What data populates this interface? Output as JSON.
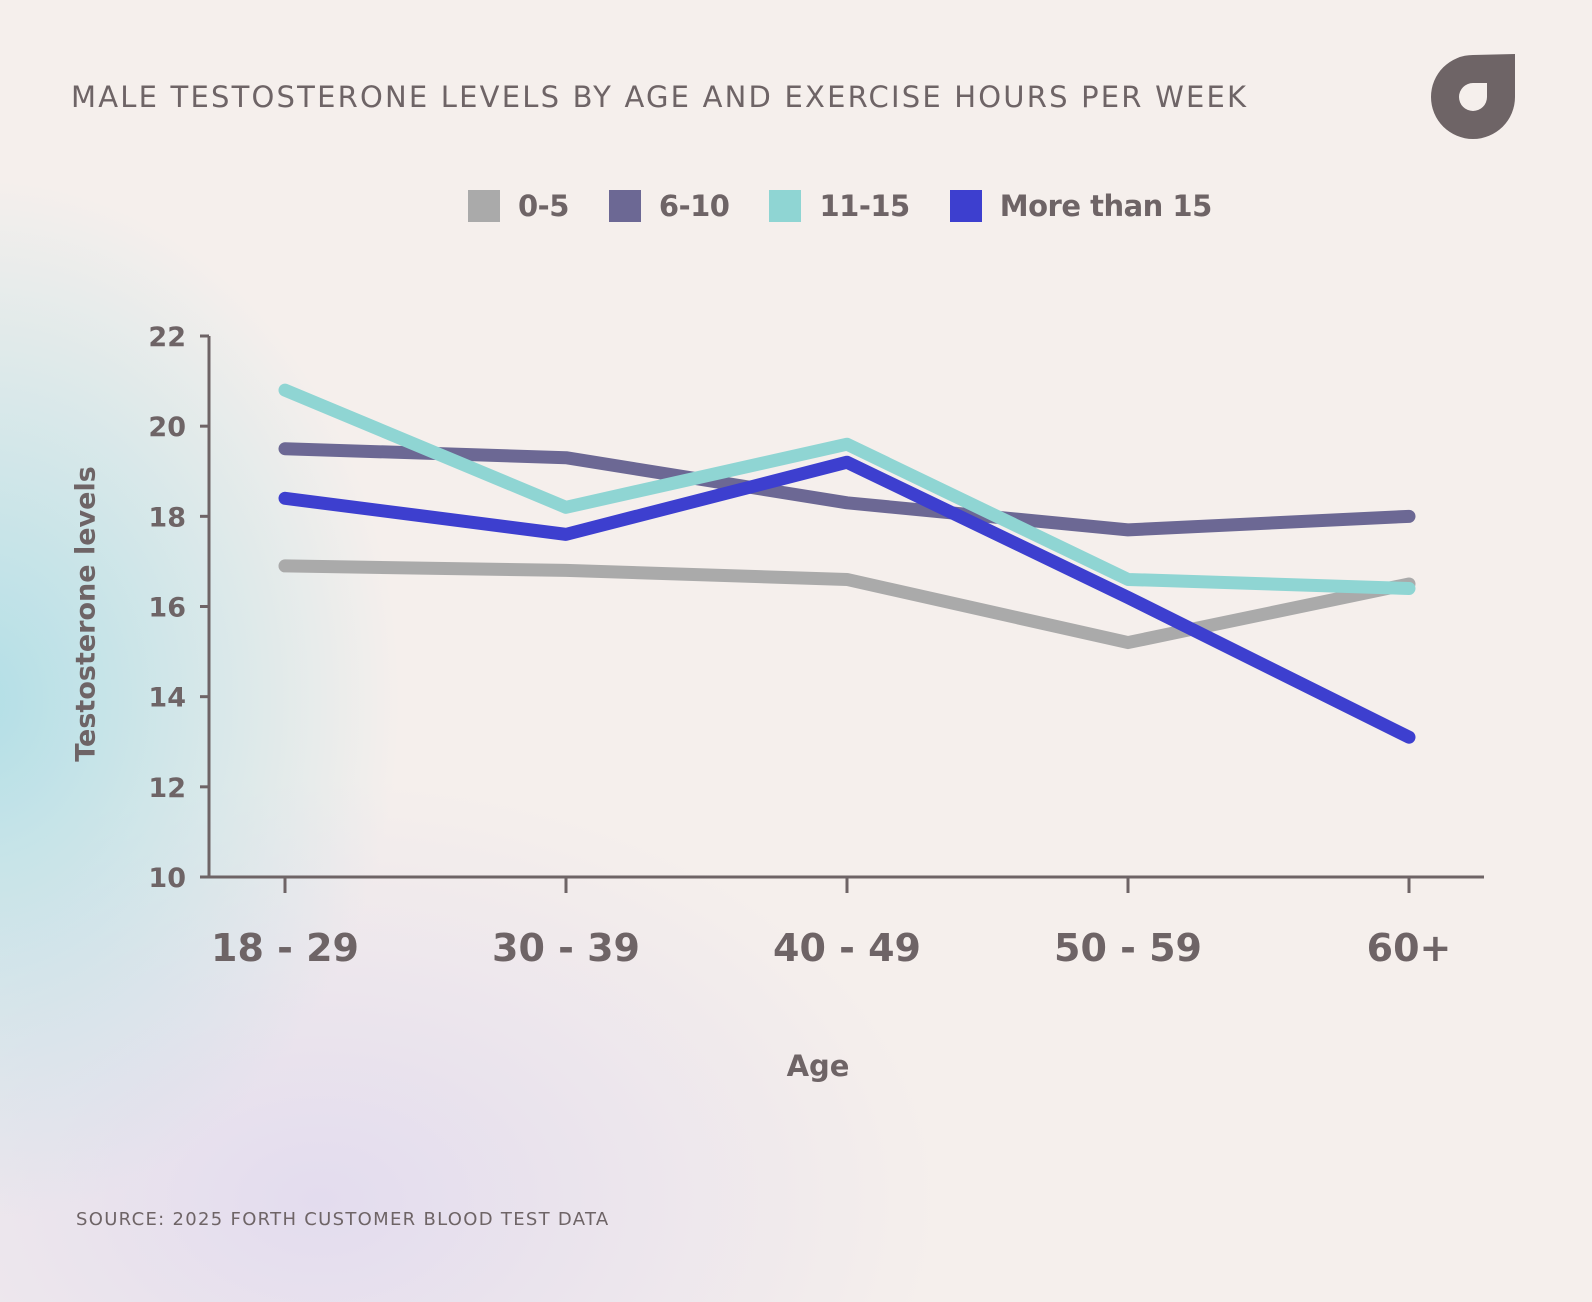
{
  "header": {
    "title": "MALE TESTOSTERONE LEVELS BY AGE AND EXERCISE HOURS PER WEEK",
    "logo_icon": "forth-logo-icon"
  },
  "footer": {
    "source": "SOURCE: 2025 FORTH CUSTOMER BLOOD TEST DATA"
  },
  "colors": {
    "text": "#6e6466",
    "axis": "#6e6466",
    "background": "#f5efec"
  },
  "chart_data": {
    "type": "line",
    "title": "MALE TESTOSTERONE LEVELS BY AGE AND EXERCISE HOURS PER WEEK",
    "xlabel": "Age",
    "ylabel": "Testosterone levels",
    "categories": [
      "18 - 29",
      "30 - 39",
      "40 - 49",
      "50 - 59",
      "60+"
    ],
    "ylim": [
      10,
      22
    ],
    "yticks": [
      10,
      12,
      14,
      16,
      18,
      20,
      22
    ],
    "grid": false,
    "legend_position": "top-center",
    "series": [
      {
        "name": "0-5",
        "color": "#aaaaaa",
        "values": [
          16.9,
          16.8,
          16.6,
          15.2,
          16.5
        ]
      },
      {
        "name": "6-10",
        "color": "#6c6894",
        "values": [
          19.5,
          19.3,
          18.3,
          17.7,
          18.0
        ]
      },
      {
        "name": "11-15",
        "color": "#8fd5d3",
        "values": [
          20.8,
          18.2,
          19.6,
          16.6,
          16.4
        ]
      },
      {
        "name": "More than 15",
        "color": "#3d3fcf",
        "values": [
          18.4,
          17.6,
          19.2,
          16.2,
          13.1
        ]
      }
    ]
  }
}
